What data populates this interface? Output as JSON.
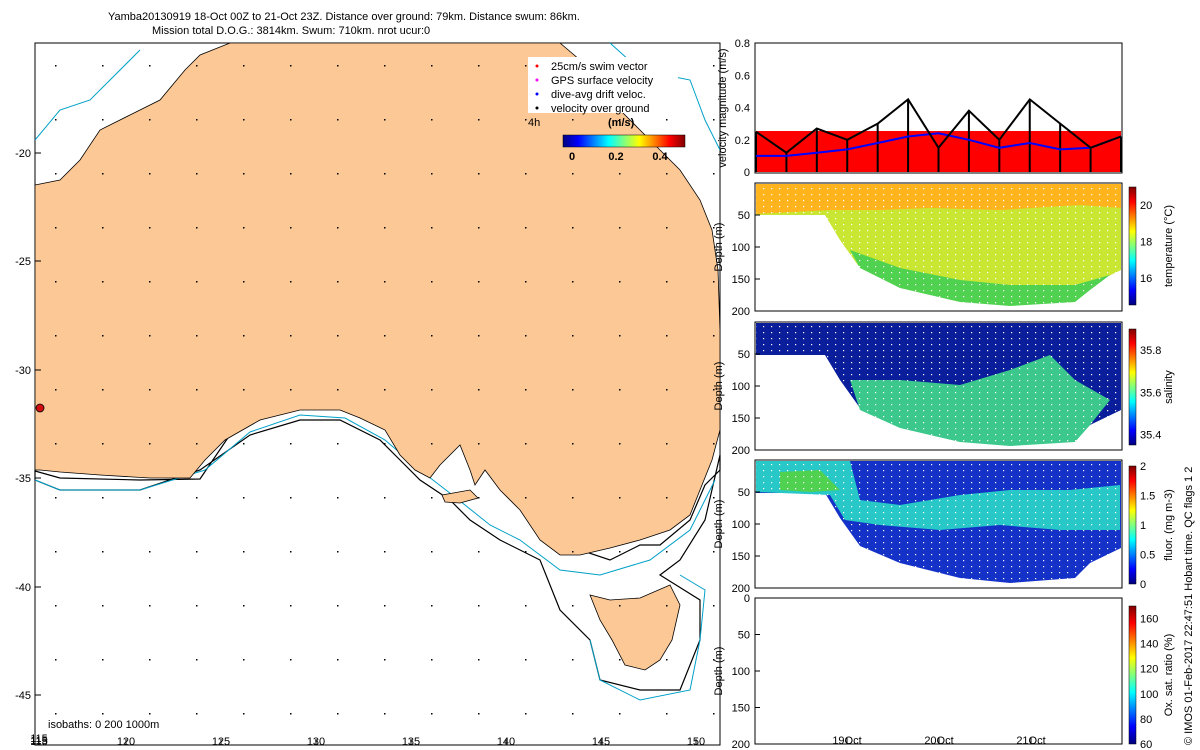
{
  "header": {
    "line1": "Yamba20130919 18-Oct 00Z to 21-Oct 23Z. Distance over ground: 79km. Distance swum: 86km.",
    "line2": "Mission total D.O.G.: 3814km. Swum: 710km. nrot ucur:0"
  },
  "map": {
    "lon_ticks": [
      "115",
      "120",
      "125",
      "130",
      "135",
      "140",
      "145",
      "150"
    ],
    "lat_ticks": [
      "-20",
      "-25",
      "-30",
      "-35",
      "-40",
      "-45"
    ],
    "isobaths_label": "isobaths: 0   200  1000m",
    "legend": {
      "items": [
        "25cm/s swim vector",
        "GPS surface velocity",
        "dive-avg drift veloc.",
        "velocity over ground"
      ],
      "colors": [
        "#ff0000",
        "#ff00ff",
        "#0000ff",
        "#000000"
      ]
    },
    "colorbar": {
      "label": "(m/s)",
      "ticks": [
        "0",
        "0.2",
        "0.4"
      ],
      "interval_label": "4h"
    },
    "land_color": "#fcc896",
    "glider_marker_color": "#d01010"
  },
  "side": {
    "copyright": "© IMOS 01-Feb-2017 22:47:51 Hobart time. QC flags 1  2"
  },
  "chart_data": [
    {
      "type": "bar",
      "title": "",
      "ylabel": "velocity magnitude (m/s)",
      "ylim": [
        0,
        0.8
      ],
      "yticks": [
        "0",
        "0.2",
        "0.4",
        "0.6",
        "0.8"
      ],
      "series": [
        {
          "name": "swim speed",
          "color": "#ff0000",
          "values": [
            0.25,
            0.25,
            0.25,
            0.25,
            0.25,
            0.25,
            0.25,
            0.25
          ]
        },
        {
          "name": "velocity over ground",
          "color": "#000000",
          "values": [
            0.25,
            0.12,
            0.27,
            0.2,
            0.3,
            0.45,
            0.15,
            0.38,
            0.2,
            0.45,
            0.3,
            0.15,
            0.22
          ]
        },
        {
          "name": "dive-avg drift",
          "color": "#0000ff",
          "values": [
            0.1,
            0.1,
            0.12,
            0.14,
            0.18,
            0.22,
            0.24,
            0.2,
            0.15,
            0.18,
            0.14,
            0.15,
            0.22
          ]
        }
      ]
    },
    {
      "type": "heatmap",
      "ylabel": "Depth (m)",
      "yticks": [
        "50",
        "100",
        "150",
        "200"
      ],
      "ylim": [
        200,
        0
      ],
      "colorbar_label": "temperature (°C)",
      "colorbar_ticks": [
        "16",
        "18",
        "20"
      ],
      "range": [
        14.5,
        21
      ]
    },
    {
      "type": "heatmap",
      "ylabel": "Depth (m)",
      "yticks": [
        "50",
        "100",
        "150",
        "200"
      ],
      "ylim": [
        200,
        0
      ],
      "colorbar_label": "salinity",
      "colorbar_ticks": [
        "35.4",
        "35.6",
        "35.8"
      ],
      "range": [
        35.35,
        35.9
      ]
    },
    {
      "type": "heatmap",
      "ylabel": "Depth (m)",
      "yticks": [
        "50",
        "100",
        "150",
        "200"
      ],
      "ylim": [
        200,
        0
      ],
      "colorbar_label": "fluor. (mg m-3)",
      "colorbar_ticks": [
        "0",
        "0.5",
        "1",
        "1.5",
        "2"
      ],
      "range": [
        0,
        2
      ]
    },
    {
      "type": "heatmap",
      "ylabel": "Depth (m)",
      "yticks": [
        "0",
        "50",
        "100",
        "150",
        "200"
      ],
      "ylim": [
        200,
        0
      ],
      "colorbar_label": "Ox. sat. ratio (%)",
      "colorbar_ticks": [
        "60",
        "80",
        "100",
        "120",
        "140",
        "160"
      ],
      "range": [
        60,
        170
      ],
      "xticks": [
        "19Oct",
        "20Oct",
        "21Oct"
      ]
    }
  ]
}
